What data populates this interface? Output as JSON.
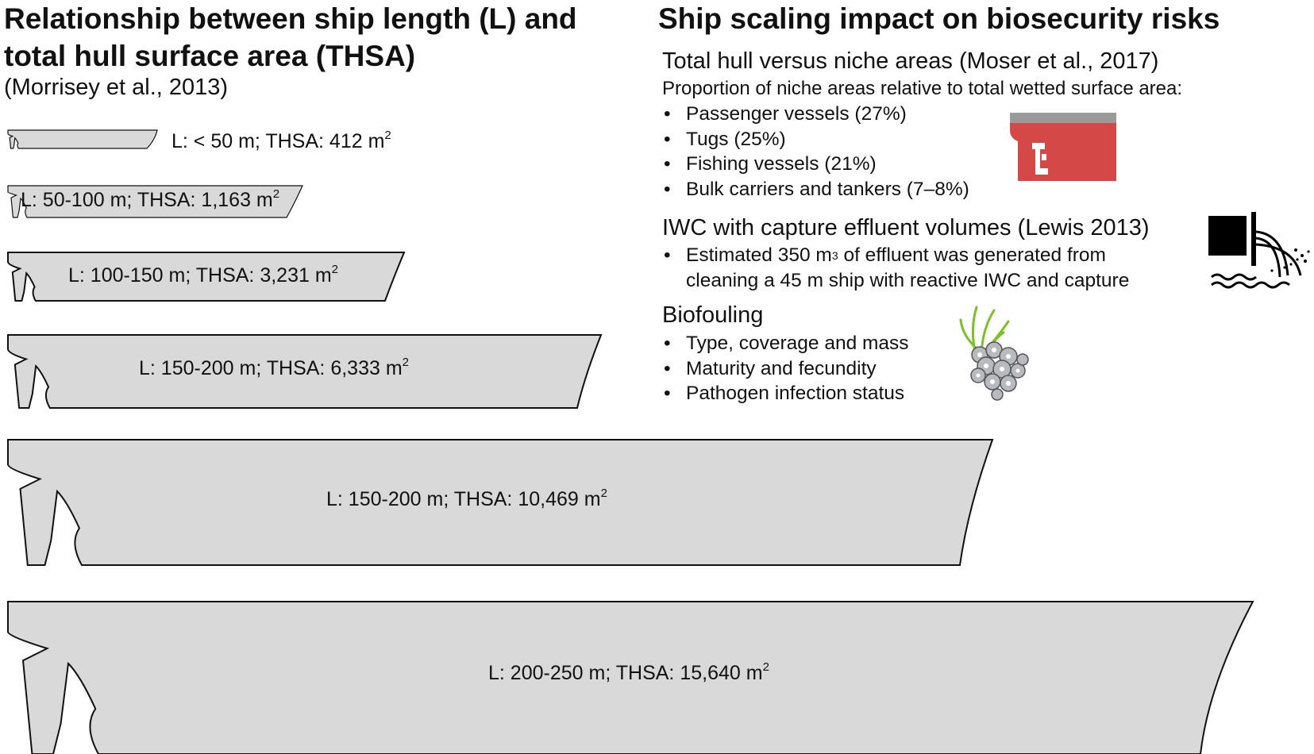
{
  "left": {
    "title": "Relationship between ship length (L) and total hull surface area (THSA)",
    "citation": "(Morrisey et al., 2013)",
    "hulls": [
      {
        "label": "L: < 50 m; THSA: 412 m",
        "sup": "2"
      },
      {
        "label": "L: 50-100 m; THSA: 1,163 m",
        "sup": "2"
      },
      {
        "label": "L: 100-150 m; THSA: 3,231 m",
        "sup": "2"
      },
      {
        "label": "L: 150-200 m; THSA: 6,333 m",
        "sup": "2"
      },
      {
        "label": "L: 150-200 m; THSA: 10,469 m",
        "sup": "2"
      },
      {
        "label": "L: 200-250 m; THSA: 15,640 m",
        "sup": "2"
      }
    ],
    "hull_fill_color": "#d9d9d9",
    "hull_stroke_color": "#111111"
  },
  "right": {
    "title": "Ship scaling impact on biosecurity risks",
    "niche": {
      "heading": "Total hull versus niche areas (Moser et al., 2017)",
      "subheading": "Proportion of niche areas relative to total wetted surface area:",
      "items": [
        "Passenger vessels (27%)",
        "Tugs (25%)",
        "Fishing vessels (21%)",
        "Bulk carriers and tankers (7–8%)"
      ],
      "icon": "ship-stern-niche-icon",
      "icon_color": "#d54848"
    },
    "iwc": {
      "heading": "IWC with capture effluent volumes (Lewis 2013)",
      "item_line1_a": "Estimated 350 m",
      "item_line1_sup": "3",
      "item_line1_b": " of effluent was generated from",
      "item_line2": "cleaning a 45 m ship with reactive IWC and capture",
      "icon": "effluent-discharge-icon"
    },
    "biofouling": {
      "heading": "Biofouling",
      "items": [
        "Type, coverage and mass",
        "Maturity and fecundity",
        "Pathogen infection status"
      ],
      "icon": "barnacle-seaweed-icon"
    }
  }
}
